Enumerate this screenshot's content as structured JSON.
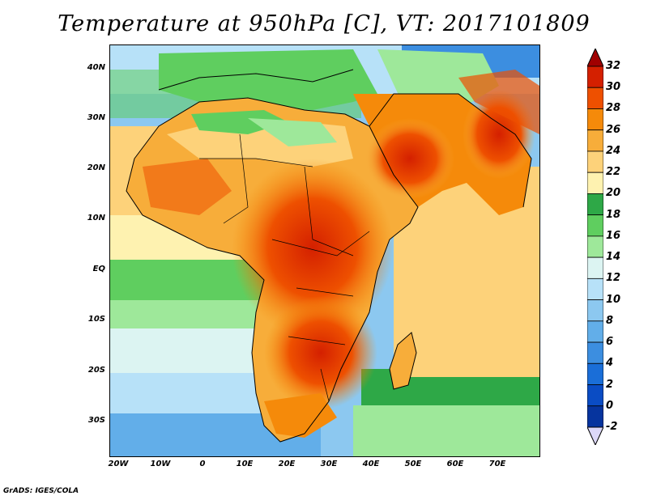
{
  "title": "Temperature at 950hPa [C], VT: 2017101809",
  "credit": "GrADS: IGES/COLA",
  "map": {
    "lat_labels": [
      "40N",
      "30N",
      "20N",
      "10N",
      "EQ",
      "10S",
      "20S",
      "30S"
    ],
    "lon_labels": [
      "20W",
      "10W",
      "0",
      "10E",
      "20E",
      "30E",
      "40E",
      "50E",
      "60E",
      "70E"
    ],
    "lat_range": [
      -37,
      45
    ],
    "lon_range": [
      -22,
      80
    ]
  },
  "colorbar": {
    "labels": [
      "32",
      "30",
      "28",
      "26",
      "24",
      "22",
      "20",
      "18",
      "16",
      "14",
      "12",
      "10",
      "8",
      "6",
      "4",
      "2",
      "0",
      "-2"
    ],
    "colors": [
      "#a00000",
      "#d42000",
      "#ee5000",
      "#f58a0a",
      "#f7ad3a",
      "#fdd27a",
      "#fef2b0",
      "#2ea847",
      "#5fce5f",
      "#9ee89a",
      "#dcf4f2",
      "#b7e1f8",
      "#8cc8f0",
      "#62aee9",
      "#3c8ee0",
      "#1a6ed8",
      "#0a4cc4",
      "#06349e",
      "#081e6e"
    ]
  }
}
